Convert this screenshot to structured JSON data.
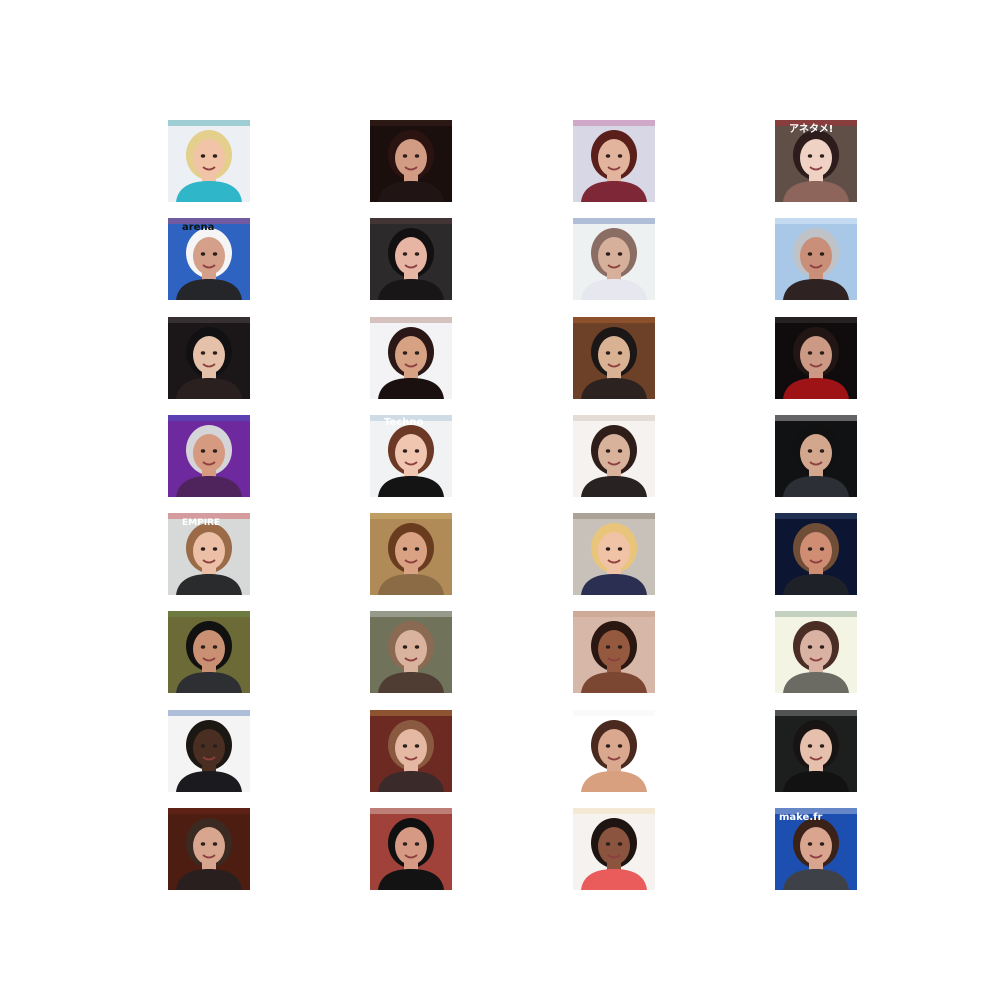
{
  "gallery": {
    "rows": 8,
    "columns": 4,
    "tiles": [
      {
        "bg": "#eceff4",
        "hair": "#e4cf8c",
        "skin": "#f1c4a7",
        "shirt": "#2fb7c9",
        "accent": "#0f8f98",
        "text": ""
      },
      {
        "bg": "#1b0f0d",
        "hair": "#2a1311",
        "skin": "#d19c83",
        "shirt": "#201514",
        "accent": "#4b2a21",
        "text": ""
      },
      {
        "bg": "#d8d7e6",
        "hair": "#5a1f1a",
        "skin": "#e3b49d",
        "shirt": "#7d2737",
        "accent": "#c7548f",
        "text": ""
      },
      {
        "bg": "#5f4f47",
        "hair": "#2c1d1c",
        "skin": "#efd2c4",
        "shirt": "#8d655a",
        "accent": "#d71f2b",
        "text": "アネタメ!"
      },
      {
        "bg": "#2f63c2",
        "hair": "#f5f5f5",
        "skin": "#d4a089",
        "shirt": "#24262a",
        "accent": "#ea4e63",
        "text": "arena"
      },
      {
        "bg": "#2d2a2b",
        "hair": "#121011",
        "skin": "#e7b5a3",
        "shirt": "#191618",
        "accent": "#6c4a48",
        "text": ""
      },
      {
        "bg": "#eef1f1",
        "hair": "#8a6d63",
        "skin": "#d7b09b",
        "shirt": "#e6e7ef",
        "accent": "#3b5ca5",
        "text": ""
      },
      {
        "bg": "#a9c8e8",
        "hair": "#bfc2c7",
        "skin": "#c98f78",
        "shirt": "#2e2322",
        "accent": "#f6fbff",
        "text": ""
      },
      {
        "bg": "#1b1719",
        "hair": "#111012",
        "skin": "#e4c1a8",
        "shirt": "#2a2020",
        "accent": "#6e5f63",
        "text": ""
      },
      {
        "bg": "#f3f2f5",
        "hair": "#2a1716",
        "skin": "#d7a184",
        "shirt": "#1a1010",
        "accent": "#9d6a58",
        "text": ""
      },
      {
        "bg": "#6d4128",
        "hair": "#1c1717",
        "skin": "#d9b193",
        "shirt": "#2c2220",
        "accent": "#c76f2e",
        "text": ""
      },
      {
        "bg": "#100c0d",
        "hair": "#221614",
        "skin": "#cc9a84",
        "shirt": "#9e1316",
        "accent": "#4f4a48",
        "text": ""
      },
      {
        "bg": "#6f299f",
        "hair": "#d4d4d9",
        "skin": "#d59a7f",
        "shirt": "#4f245c",
        "accent": "#3b71d8",
        "text": ""
      },
      {
        "bg": "#f1f2f3",
        "hair": "#6b3925",
        "skin": "#f0c6b0",
        "shirt": "#151414",
        "accent": "#8fb4cf",
        "text": "Techno"
      },
      {
        "bg": "#f5f2ef",
        "hair": "#2e1d19",
        "skin": "#d9b29b",
        "shirt": "#282222",
        "accent": "#c7b5aa",
        "text": ""
      },
      {
        "bg": "#111214",
        "hair": "#111111",
        "skin": "#d2a78e",
        "shirt": "#2c2f35",
        "accent": "#ffffff",
        "text": ""
      },
      {
        "bg": "#d6d9d8",
        "hair": "#9b6a47",
        "skin": "#ecc0a6",
        "shirt": "#2a2b2c",
        "accent": "#d02a2d",
        "text": "EMPIRE"
      },
      {
        "bg": "#b08a57",
        "hair": "#6a3c1f",
        "skin": "#d9a283",
        "shirt": "#8b6b46",
        "accent": "#e3c084",
        "text": ""
      },
      {
        "bg": "#c7c1b9",
        "hair": "#e9c57b",
        "skin": "#f0c3a6",
        "shirt": "#2b2f52",
        "accent": "#7a6c5d",
        "text": ""
      },
      {
        "bg": "#0c1633",
        "hair": "#6f4d36",
        "skin": "#cf8d74",
        "shirt": "#1f2128",
        "accent": "#44618d",
        "text": ""
      },
      {
        "bg": "#6c6a36",
        "hair": "#111111",
        "skin": "#c99073",
        "shirt": "#2d2f33",
        "accent": "#6f9b57",
        "text": ""
      },
      {
        "bg": "#70735a",
        "hair": "#8a6a52",
        "skin": "#d9b39e",
        "shirt": "#4f3d33",
        "accent": "#d9e2e5",
        "text": ""
      },
      {
        "bg": "#d7b8a8",
        "hair": "#2a1712",
        "skin": "#94593f",
        "shirt": "#7c4732",
        "accent": "#c08f77",
        "text": ""
      },
      {
        "bg": "#f4f4e5",
        "hair": "#4a2d24",
        "skin": "#d9b2a3",
        "shirt": "#6b6a63",
        "accent": "#6a8f7f",
        "text": ""
      },
      {
        "bg": "#f4f4f4",
        "hair": "#1b1713",
        "skin": "#4a2e22",
        "shirt": "#1b1b1f",
        "accent": "#2a5aa3",
        "text": ""
      },
      {
        "bg": "#6c2a23",
        "hair": "#8a5a40",
        "skin": "#e4b8a3",
        "shirt": "#3a2a2a",
        "accent": "#c9a24b",
        "text": ""
      },
      {
        "bg": "#ffffff",
        "hair": "#4a2a1e",
        "skin": "#d9a88f",
        "shirt": "#d8a07f",
        "accent": "#f2f2f2",
        "text": ""
      },
      {
        "bg": "#1d1f1e",
        "hair": "#191414",
        "skin": "#e7c0ad",
        "shirt": "#121212",
        "accent": "#b7b7b7",
        "text": ""
      },
      {
        "bg": "#4d1d12",
        "hair": "#3b2a21",
        "skin": "#d8a68e",
        "shirt": "#2a1f1f",
        "accent": "#7c2a1f",
        "text": ""
      },
      {
        "bg": "#a0413a",
        "hair": "#101010",
        "skin": "#d69a84",
        "shirt": "#131313",
        "accent": "#f3f0ef",
        "text": ""
      },
      {
        "bg": "#f5f2ef",
        "hair": "#1e1412",
        "skin": "#8b543f",
        "shirt": "#ea5b5b",
        "accent": "#f1d9a4",
        "text": ""
      },
      {
        "bg": "#1d4fb1",
        "hair": "#3b2219",
        "skin": "#d9a58f",
        "shirt": "#3f4148",
        "accent": "#f2f2f2",
        "text": "make.fr"
      }
    ]
  }
}
